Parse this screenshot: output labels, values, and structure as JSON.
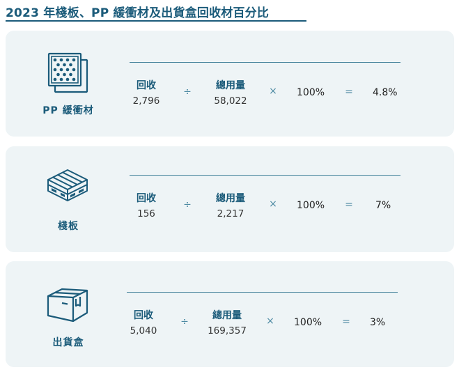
{
  "title": "2023 年棧板、PP 緩衝材及出貨盒回收材百分比",
  "cards": [
    {
      "label": "PP 緩衝材",
      "icon": "pp-cushion-icon",
      "recycled_label": "回收",
      "recycled_value": "2,796",
      "divide_symbol": "÷",
      "total_label": "總用量",
      "total_value": "58,022",
      "times_symbol": "×",
      "percent_factor": "100%",
      "equals_symbol": "=",
      "result": "4.8%"
    },
    {
      "label": "棧板",
      "icon": "pallet-icon",
      "recycled_label": "回收",
      "recycled_value": "156",
      "divide_symbol": "÷",
      "total_label": "總用量",
      "total_value": "2,217",
      "times_symbol": "×",
      "percent_factor": "100%",
      "equals_symbol": "=",
      "result": "7%"
    },
    {
      "label": "出貨盒",
      "icon": "shipping-box-icon",
      "recycled_label": "回收",
      "recycled_value": "5,040",
      "divide_symbol": "÷",
      "total_label": "總用量",
      "total_value": "169,357",
      "times_symbol": "×",
      "percent_factor": "100%",
      "equals_symbol": "=",
      "result": "3%"
    }
  ],
  "colors": {
    "primary": "#1b5b7a",
    "card_background": "#eef4f6",
    "operator": "#4d8aa3"
  }
}
